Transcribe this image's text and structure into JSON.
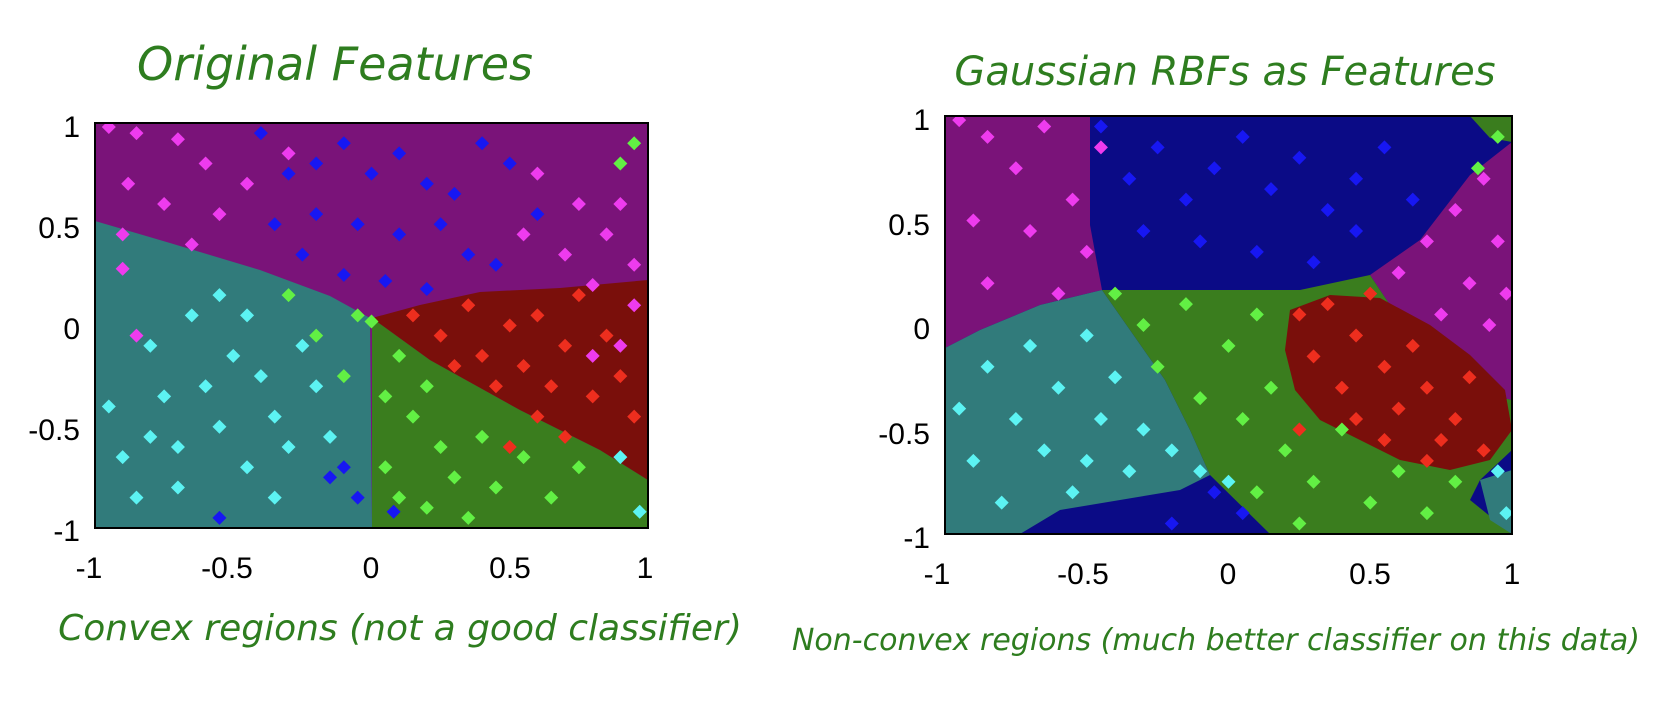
{
  "colors": {
    "region_purple": "#7a1379",
    "region_blue": "#0b0b86",
    "region_teal": "#317b7b",
    "region_green": "#3a7d1e",
    "region_red": "#7a0f0b",
    "pt_magenta": "#ee3bee",
    "pt_blue": "#1717f2",
    "pt_cyan": "#5cf3f3",
    "pt_green": "#62f044",
    "pt_red": "#ee2e1e",
    "annotation": "#2e7d1f"
  },
  "chart_data": [
    {
      "type": "scatter",
      "title": "Original Features",
      "caption": "Convex regions (not a good classifier)",
      "xlim": [
        -1,
        1
      ],
      "ylim": [
        -1,
        1
      ],
      "x_ticks": [
        "-1",
        "-0.5",
        "0",
        "0.5",
        "1"
      ],
      "y_ticks": [
        "1",
        "0.5",
        "0",
        "-0.5",
        "-1"
      ],
      "grid": false,
      "series": [
        {
          "color": "pt_magenta",
          "points": [
            [
              -0.95,
              0.98
            ],
            [
              -0.85,
              0.95
            ],
            [
              -0.7,
              0.92
            ],
            [
              -0.6,
              0.8
            ],
            [
              -0.88,
              0.7
            ],
            [
              -0.75,
              0.6
            ],
            [
              -0.55,
              0.55
            ],
            [
              -0.9,
              0.45
            ],
            [
              -0.65,
              0.4
            ],
            [
              -0.45,
              0.7
            ],
            [
              -0.3,
              0.85
            ],
            [
              0.6,
              0.75
            ],
            [
              0.75,
              0.6
            ],
            [
              0.85,
              0.45
            ],
            [
              0.95,
              0.3
            ],
            [
              0.9,
              0.6
            ],
            [
              0.7,
              0.35
            ],
            [
              0.55,
              0.45
            ],
            [
              0.8,
              0.2
            ],
            [
              0.95,
              0.1
            ],
            [
              0.9,
              -0.1
            ],
            [
              0.8,
              -0.15
            ],
            [
              -0.9,
              0.28
            ],
            [
              -0.85,
              -0.05
            ]
          ]
        },
        {
          "color": "pt_blue",
          "points": [
            [
              -0.4,
              0.95
            ],
            [
              -0.3,
              0.75
            ],
            [
              -0.2,
              0.8
            ],
            [
              -0.1,
              0.9
            ],
            [
              0.0,
              0.75
            ],
            [
              0.1,
              0.85
            ],
            [
              0.2,
              0.7
            ],
            [
              0.3,
              0.65
            ],
            [
              0.4,
              0.9
            ],
            [
              0.5,
              0.8
            ],
            [
              0.6,
              0.55
            ],
            [
              -0.35,
              0.5
            ],
            [
              -0.2,
              0.55
            ],
            [
              -0.05,
              0.5
            ],
            [
              0.1,
              0.45
            ],
            [
              0.25,
              0.5
            ],
            [
              0.35,
              0.35
            ],
            [
              0.45,
              0.3
            ],
            [
              -0.25,
              0.35
            ],
            [
              -0.1,
              0.25
            ],
            [
              0.05,
              0.22
            ],
            [
              0.2,
              0.18
            ],
            [
              -0.15,
              -0.75
            ],
            [
              -0.05,
              -0.85
            ],
            [
              -0.1,
              -0.7
            ],
            [
              -0.55,
              -0.95
            ],
            [
              0.08,
              -0.92
            ]
          ]
        },
        {
          "color": "pt_cyan",
          "points": [
            [
              -0.95,
              -0.4
            ],
            [
              -0.9,
              -0.65
            ],
            [
              -0.85,
              -0.85
            ],
            [
              -0.8,
              -0.1
            ],
            [
              -0.75,
              -0.35
            ],
            [
              -0.7,
              -0.6
            ],
            [
              -0.65,
              0.05
            ],
            [
              -0.6,
              -0.3
            ],
            [
              -0.55,
              -0.5
            ],
            [
              -0.5,
              -0.15
            ],
            [
              -0.45,
              -0.7
            ],
            [
              -0.4,
              -0.25
            ],
            [
              -0.35,
              -0.45
            ],
            [
              -0.3,
              -0.6
            ],
            [
              -0.25,
              -0.1
            ],
            [
              -0.2,
              -0.3
            ],
            [
              -0.15,
              -0.55
            ],
            [
              -0.55,
              0.15
            ],
            [
              -0.45,
              0.05
            ],
            [
              -0.35,
              -0.85
            ],
            [
              -0.7,
              -0.8
            ],
            [
              -0.8,
              -0.55
            ],
            [
              0.9,
              -0.65
            ],
            [
              0.97,
              -0.92
            ]
          ]
        },
        {
          "color": "pt_green",
          "points": [
            [
              -0.3,
              0.15
            ],
            [
              -0.2,
              -0.05
            ],
            [
              -0.1,
              -0.25
            ],
            [
              -0.05,
              0.05
            ],
            [
              0.0,
              0.02
            ],
            [
              0.05,
              -0.35
            ],
            [
              0.1,
              -0.15
            ],
            [
              0.15,
              -0.45
            ],
            [
              0.2,
              -0.3
            ],
            [
              0.25,
              -0.6
            ],
            [
              0.3,
              -0.75
            ],
            [
              0.4,
              -0.55
            ],
            [
              0.45,
              -0.8
            ],
            [
              0.55,
              -0.65
            ],
            [
              0.65,
              -0.85
            ],
            [
              0.75,
              -0.7
            ],
            [
              0.2,
              -0.9
            ],
            [
              0.35,
              -0.95
            ],
            [
              0.05,
              -0.7
            ],
            [
              0.1,
              -0.85
            ],
            [
              0.95,
              0.9
            ],
            [
              0.9,
              0.8
            ]
          ]
        },
        {
          "color": "pt_red",
          "points": [
            [
              0.15,
              0.05
            ],
            [
              0.25,
              -0.05
            ],
            [
              0.35,
              0.1
            ],
            [
              0.4,
              -0.15
            ],
            [
              0.5,
              0.0
            ],
            [
              0.55,
              -0.2
            ],
            [
              0.6,
              0.05
            ],
            [
              0.65,
              -0.3
            ],
            [
              0.7,
              -0.1
            ],
            [
              0.75,
              0.15
            ],
            [
              0.8,
              -0.35
            ],
            [
              0.85,
              -0.05
            ],
            [
              0.9,
              -0.25
            ],
            [
              0.95,
              -0.45
            ],
            [
              0.6,
              -0.45
            ],
            [
              0.45,
              -0.3
            ],
            [
              0.3,
              -0.2
            ],
            [
              0.7,
              -0.55
            ],
            [
              0.5,
              -0.6
            ]
          ]
        }
      ]
    },
    {
      "type": "scatter",
      "title": "Gaussian RBFs as Features",
      "caption": "Non-convex regions (much better classifier on this data)",
      "xlim": [
        -1,
        1
      ],
      "ylim": [
        -1,
        1
      ],
      "x_ticks": [
        "-1",
        "-0.5",
        "0",
        "0.5",
        "1"
      ],
      "y_ticks": [
        "1",
        "0.5",
        "0",
        "-0.5",
        "-1"
      ],
      "grid": false,
      "series": [
        {
          "color": "pt_magenta",
          "points": [
            [
              -0.95,
              0.98
            ],
            [
              -0.85,
              0.9
            ],
            [
              -0.75,
              0.75
            ],
            [
              -0.65,
              0.95
            ],
            [
              -0.55,
              0.6
            ],
            [
              -0.9,
              0.5
            ],
            [
              -0.7,
              0.45
            ],
            [
              -0.5,
              0.35
            ],
            [
              -0.85,
              0.2
            ],
            [
              -0.6,
              0.15
            ],
            [
              -0.45,
              0.85
            ],
            [
              0.6,
              0.25
            ],
            [
              0.7,
              0.4
            ],
            [
              0.8,
              0.55
            ],
            [
              0.9,
              0.7
            ],
            [
              0.95,
              0.4
            ],
            [
              0.85,
              0.2
            ],
            [
              0.75,
              0.05
            ],
            [
              0.92,
              0.0
            ],
            [
              0.98,
              0.15
            ]
          ]
        },
        {
          "color": "pt_blue",
          "points": [
            [
              -0.45,
              0.95
            ],
            [
              -0.35,
              0.7
            ],
            [
              -0.25,
              0.85
            ],
            [
              -0.15,
              0.6
            ],
            [
              -0.05,
              0.75
            ],
            [
              0.05,
              0.9
            ],
            [
              0.15,
              0.65
            ],
            [
              0.25,
              0.8
            ],
            [
              0.35,
              0.55
            ],
            [
              0.45,
              0.7
            ],
            [
              0.55,
              0.85
            ],
            [
              0.65,
              0.6
            ],
            [
              -0.3,
              0.45
            ],
            [
              -0.1,
              0.4
            ],
            [
              0.1,
              0.35
            ],
            [
              0.3,
              0.3
            ],
            [
              0.45,
              0.45
            ],
            [
              -0.05,
              -0.8
            ],
            [
              0.05,
              -0.9
            ],
            [
              -0.2,
              -0.95
            ]
          ]
        },
        {
          "color": "pt_cyan",
          "points": [
            [
              -0.95,
              -0.4
            ],
            [
              -0.9,
              -0.65
            ],
            [
              -0.85,
              -0.2
            ],
            [
              -0.8,
              -0.85
            ],
            [
              -0.75,
              -0.45
            ],
            [
              -0.7,
              -0.1
            ],
            [
              -0.65,
              -0.6
            ],
            [
              -0.6,
              -0.3
            ],
            [
              -0.55,
              -0.8
            ],
            [
              -0.5,
              -0.05
            ],
            [
              -0.45,
              -0.45
            ],
            [
              -0.4,
              -0.25
            ],
            [
              -0.35,
              -0.7
            ],
            [
              -0.3,
              -0.5
            ],
            [
              -0.5,
              -0.65
            ],
            [
              -0.2,
              -0.6
            ],
            [
              -0.1,
              -0.7
            ],
            [
              0.0,
              -0.75
            ],
            [
              0.95,
              -0.7
            ],
            [
              0.98,
              -0.9
            ]
          ]
        },
        {
          "color": "pt_green",
          "points": [
            [
              -0.4,
              0.15
            ],
            [
              -0.3,
              0.0
            ],
            [
              -0.25,
              -0.2
            ],
            [
              -0.15,
              0.1
            ],
            [
              -0.1,
              -0.35
            ],
            [
              0.0,
              -0.1
            ],
            [
              0.05,
              -0.45
            ],
            [
              0.1,
              0.05
            ],
            [
              0.15,
              -0.3
            ],
            [
              0.2,
              -0.6
            ],
            [
              0.3,
              -0.75
            ],
            [
              0.4,
              -0.5
            ],
            [
              0.5,
              -0.85
            ],
            [
              0.6,
              -0.7
            ],
            [
              0.7,
              -0.9
            ],
            [
              0.8,
              -0.75
            ],
            [
              0.25,
              -0.95
            ],
            [
              0.1,
              -0.8
            ],
            [
              0.95,
              0.9
            ],
            [
              0.88,
              0.75
            ]
          ]
        },
        {
          "color": "pt_red",
          "points": [
            [
              0.25,
              0.05
            ],
            [
              0.3,
              -0.15
            ],
            [
              0.35,
              0.1
            ],
            [
              0.4,
              -0.3
            ],
            [
              0.45,
              -0.05
            ],
            [
              0.5,
              0.15
            ],
            [
              0.55,
              -0.2
            ],
            [
              0.6,
              -0.4
            ],
            [
              0.65,
              -0.1
            ],
            [
              0.7,
              -0.3
            ],
            [
              0.75,
              -0.55
            ],
            [
              0.8,
              -0.45
            ],
            [
              0.85,
              -0.25
            ],
            [
              0.9,
              -0.6
            ],
            [
              0.55,
              -0.55
            ],
            [
              0.45,
              -0.45
            ],
            [
              0.7,
              -0.65
            ],
            [
              0.25,
              -0.5
            ]
          ]
        }
      ]
    }
  ]
}
